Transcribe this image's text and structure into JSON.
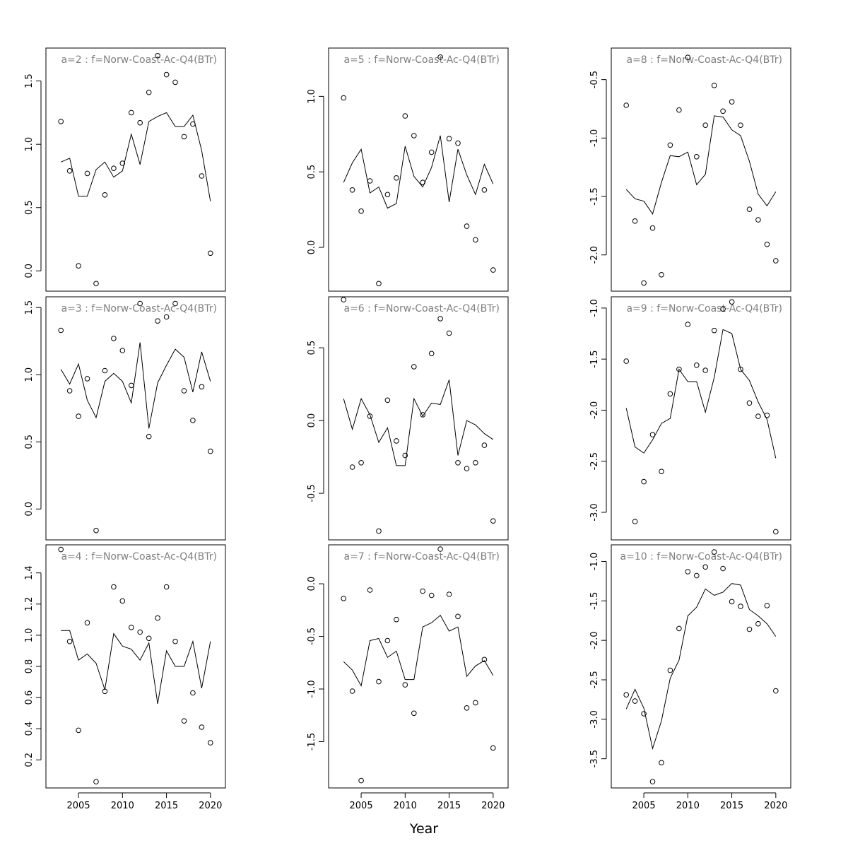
{
  "figure": {
    "xlabel": "Year"
  },
  "chart_data": [
    {
      "type": "scatter",
      "title": "a=2  :  f=Norw-Coast-Ac-Q4(BTr)",
      "xlim": [
        2001.3,
        2021.7
      ],
      "ylim": [
        -0.16,
        1.76
      ],
      "yticks": [
        0.0,
        0.5,
        1.0,
        1.5
      ],
      "yticklabels": [
        "0.0",
        "0.5",
        "1.0",
        "1.5"
      ],
      "xticks": [],
      "xticklabels": [],
      "years": [
        2003,
        2004,
        2005,
        2006,
        2007,
        2008,
        2009,
        2010,
        2011,
        2012,
        2013,
        2014,
        2015,
        2016,
        2017,
        2018,
        2019,
        2020
      ],
      "observed": [
        1.18,
        0.79,
        0.04,
        0.77,
        -0.1,
        0.6,
        0.81,
        0.85,
        1.25,
        1.17,
        1.41,
        1.7,
        1.55,
        1.49,
        1.06,
        1.16,
        0.75,
        0.14
      ],
      "fitted": [
        0.86,
        0.89,
        0.59,
        0.59,
        0.8,
        0.86,
        0.74,
        0.79,
        1.08,
        0.84,
        1.18,
        1.22,
        1.25,
        1.14,
        1.14,
        1.23,
        0.95,
        0.55
      ]
    },
    {
      "type": "scatter",
      "title": "a=5  :  f=Norw-Coast-Ac-Q4(BTr)",
      "xlim": [
        2001.3,
        2021.7
      ],
      "ylim": [
        -0.29,
        1.32
      ],
      "yticks": [
        0.0,
        0.5,
        1.0
      ],
      "yticklabels": [
        "0.0",
        "0.5",
        "1.0"
      ],
      "xticks": [],
      "xticklabels": [],
      "years": [
        2003,
        2004,
        2005,
        2006,
        2007,
        2008,
        2009,
        2010,
        2011,
        2012,
        2013,
        2014,
        2015,
        2016,
        2017,
        2018,
        2019,
        2020
      ],
      "observed": [
        0.99,
        0.38,
        0.24,
        0.44,
        -0.24,
        0.35,
        0.46,
        0.87,
        0.74,
        0.43,
        0.63,
        1.26,
        0.72,
        0.69,
        0.14,
        0.05,
        0.38,
        -0.15
      ],
      "fitted": [
        0.43,
        0.56,
        0.65,
        0.36,
        0.4,
        0.26,
        0.29,
        0.67,
        0.47,
        0.4,
        0.53,
        0.74,
        0.3,
        0.65,
        0.48,
        0.35,
        0.55,
        0.42
      ]
    },
    {
      "type": "scatter",
      "title": "a=8  :  f=Norw-Coast-Ac-Q4(BTr)",
      "xlim": [
        2001.3,
        2021.7
      ],
      "ylim": [
        -2.31,
        -0.23
      ],
      "yticks": [
        -2.0,
        -1.5,
        -1.0,
        -0.5
      ],
      "yticklabels": [
        "-2.0",
        "-1.5",
        "-1.0",
        "-0.5"
      ],
      "xticks": [],
      "xticklabels": [],
      "years": [
        2003,
        2004,
        2005,
        2006,
        2007,
        2008,
        2009,
        2010,
        2011,
        2012,
        2013,
        2014,
        2015,
        2016,
        2017,
        2018,
        2019,
        2020
      ],
      "observed": [
        -0.72,
        -1.71,
        -2.24,
        -1.77,
        -2.17,
        -1.06,
        -0.76,
        -0.31,
        -1.16,
        -0.89,
        -0.55,
        -0.77,
        -0.69,
        -0.89,
        -1.61,
        -1.7,
        -1.91,
        -2.05
      ],
      "fitted": [
        -1.44,
        -1.52,
        -1.54,
        -1.65,
        -1.38,
        -1.15,
        -1.16,
        -1.12,
        -1.4,
        -1.31,
        -0.81,
        -0.82,
        -0.93,
        -0.98,
        -1.2,
        -1.48,
        -1.58,
        -1.46
      ]
    },
    {
      "type": "scatter",
      "title": "a=3  :  f=Norw-Coast-Ac-Q4(BTr)",
      "xlim": [
        2001.3,
        2021.7
      ],
      "ylim": [
        -0.23,
        1.58
      ],
      "yticks": [
        0.0,
        0.5,
        1.0,
        1.5
      ],
      "yticklabels": [
        "0.0",
        "0.5",
        "1.0",
        "1.5"
      ],
      "xticks": [],
      "xticklabels": [],
      "years": [
        2003,
        2004,
        2005,
        2006,
        2007,
        2008,
        2009,
        2010,
        2011,
        2012,
        2013,
        2014,
        2015,
        2016,
        2017,
        2018,
        2019,
        2020
      ],
      "observed": [
        1.33,
        0.88,
        0.69,
        0.97,
        -0.16,
        1.03,
        1.27,
        1.18,
        0.92,
        1.53,
        0.54,
        1.4,
        1.43,
        1.53,
        0.88,
        0.66,
        0.91,
        0.43
      ],
      "fitted": [
        1.04,
        0.93,
        1.08,
        0.81,
        0.68,
        0.95,
        1.01,
        0.95,
        0.79,
        1.24,
        0.6,
        0.94,
        1.07,
        1.19,
        1.13,
        0.87,
        1.17,
        0.95
      ]
    },
    {
      "type": "scatter",
      "title": "a=6  :  f=Norw-Coast-Ac-Q4(BTr)",
      "xlim": [
        2001.3,
        2021.7
      ],
      "ylim": [
        -0.82,
        0.85
      ],
      "yticks": [
        -0.5,
        0.0,
        0.5
      ],
      "yticklabels": [
        "-0.5",
        "0.0",
        "0.5"
      ],
      "xticks": [],
      "xticklabels": [],
      "years": [
        2003,
        2004,
        2005,
        2006,
        2007,
        2008,
        2009,
        2010,
        2011,
        2012,
        2013,
        2014,
        2015,
        2016,
        2017,
        2018,
        2019,
        2020
      ],
      "observed": [
        0.83,
        -0.32,
        -0.29,
        0.03,
        -0.76,
        0.14,
        -0.14,
        -0.24,
        0.37,
        0.04,
        0.46,
        0.7,
        0.6,
        -0.29,
        -0.33,
        -0.29,
        -0.17,
        -0.69
      ],
      "fitted": [
        0.15,
        -0.06,
        0.15,
        0.04,
        -0.15,
        -0.05,
        -0.31,
        -0.31,
        0.15,
        0.03,
        0.12,
        0.11,
        0.28,
        -0.24,
        0.0,
        -0.03,
        -0.09,
        -0.13
      ]
    },
    {
      "type": "scatter",
      "title": "a=9  :  f=Norw-Coast-Ac-Q4(BTr)",
      "xlim": [
        2001.3,
        2021.7
      ],
      "ylim": [
        -3.27,
        -0.89
      ],
      "yticks": [
        -3.0,
        -2.5,
        -2.0,
        -1.5,
        -1.0
      ],
      "yticklabels": [
        "-3.0",
        "-2.5",
        "-2.0",
        "-1.5",
        "-1.0"
      ],
      "xticks": [],
      "xticklabels": [],
      "years": [
        2003,
        2004,
        2005,
        2006,
        2007,
        2008,
        2009,
        2010,
        2011,
        2012,
        2013,
        2014,
        2015,
        2016,
        2017,
        2018,
        2019,
        2020
      ],
      "observed": [
        -1.52,
        -3.09,
        -2.7,
        -2.24,
        -2.6,
        -1.84,
        -1.6,
        -1.16,
        -1.56,
        -1.61,
        -1.22,
        -1.01,
        -0.94,
        -1.6,
        -1.93,
        -2.06,
        -2.05,
        -3.19
      ],
      "fitted": [
        -1.98,
        -2.36,
        -2.42,
        -2.29,
        -2.13,
        -2.08,
        -1.6,
        -1.72,
        -1.72,
        -2.02,
        -1.68,
        -1.21,
        -1.25,
        -1.6,
        -1.71,
        -1.92,
        -2.09,
        -2.47
      ]
    },
    {
      "type": "scatter",
      "title": "a=4  :  f=Norw-Coast-Ac-Q4(BTr)",
      "xlim": [
        2001.3,
        2021.7
      ],
      "ylim": [
        0.02,
        1.58
      ],
      "yticks": [
        0.2,
        0.4,
        0.6,
        0.8,
        1.0,
        1.2,
        1.4
      ],
      "yticklabels": [
        "0.2",
        "0.4",
        "0.6",
        "0.8",
        "1.0",
        "1.2",
        "1.4"
      ],
      "xticks": [
        2005,
        2010,
        2015,
        2020
      ],
      "xticklabels": [
        "2005",
        "2010",
        "2015",
        "2020"
      ],
      "years": [
        2003,
        2004,
        2005,
        2006,
        2007,
        2008,
        2009,
        2010,
        2011,
        2012,
        2013,
        2014,
        2015,
        2016,
        2017,
        2018,
        2019,
        2020
      ],
      "observed": [
        1.55,
        0.96,
        0.39,
        1.08,
        0.06,
        0.64,
        1.31,
        1.22,
        1.05,
        1.02,
        0.98,
        1.11,
        1.31,
        0.96,
        0.45,
        0.63,
        0.41,
        0.31
      ],
      "fitted": [
        1.03,
        1.03,
        0.84,
        0.88,
        0.82,
        0.65,
        1.01,
        0.93,
        0.91,
        0.84,
        0.95,
        0.56,
        0.9,
        0.8,
        0.8,
        0.96,
        0.66,
        0.96
      ]
    },
    {
      "type": "scatter",
      "title": "a=7  :  f=Norw-Coast-Ac-Q4(BTr)",
      "xlim": [
        2001.3,
        2021.7
      ],
      "ylim": [
        -1.94,
        0.37
      ],
      "yticks": [
        -1.5,
        -1.0,
        -0.5,
        0.0
      ],
      "yticklabels": [
        "-1.5",
        "-1.0",
        "-0.5",
        "0.0"
      ],
      "xticks": [
        2005,
        2010,
        2015,
        2020
      ],
      "xticklabels": [
        "2005",
        "2010",
        "2015",
        "2020"
      ],
      "years": [
        2003,
        2004,
        2005,
        2006,
        2007,
        2008,
        2009,
        2010,
        2011,
        2012,
        2013,
        2014,
        2015,
        2016,
        2017,
        2018,
        2019,
        2020
      ],
      "observed": [
        -0.14,
        -1.02,
        -1.87,
        -0.06,
        -0.93,
        -0.54,
        -0.34,
        -0.96,
        -1.23,
        -0.07,
        -0.11,
        0.33,
        -0.1,
        -0.31,
        -1.18,
        -1.13,
        -0.72,
        -1.56
      ],
      "fitted": [
        -0.74,
        -0.82,
        -0.97,
        -0.54,
        -0.52,
        -0.7,
        -0.64,
        -0.91,
        -0.91,
        -0.41,
        -0.37,
        -0.3,
        -0.45,
        -0.41,
        -0.88,
        -0.78,
        -0.73,
        -0.87
      ]
    },
    {
      "type": "scatter",
      "title": "a=10  :  f=Norw-Coast-Ac-Q4(BTr)",
      "xlim": [
        2001.3,
        2021.7
      ],
      "ylim": [
        -3.87,
        -0.79
      ],
      "yticks": [
        -3.5,
        -3.0,
        -2.5,
        -2.0,
        -1.5,
        -1.0
      ],
      "yticklabels": [
        "-3.5",
        "-3.0",
        "-2.5",
        "-2.0",
        "-1.5",
        "-1.0"
      ],
      "xticks": [
        2005,
        2010,
        2015,
        2020
      ],
      "xticklabels": [
        "2005",
        "2010",
        "2015",
        "2020"
      ],
      "years": [
        2003,
        2004,
        2005,
        2006,
        2007,
        2008,
        2009,
        2010,
        2011,
        2012,
        2013,
        2014,
        2015,
        2016,
        2017,
        2018,
        2019,
        2020
      ],
      "observed": [
        -2.69,
        -2.77,
        -2.93,
        -3.79,
        -3.55,
        -2.38,
        -1.85,
        -1.13,
        -1.18,
        -1.07,
        -0.88,
        -1.09,
        -1.51,
        -1.57,
        -1.86,
        -1.79,
        -1.56,
        -2.64
      ],
      "fitted": [
        -2.87,
        -2.62,
        -2.86,
        -3.37,
        -3.02,
        -2.48,
        -2.25,
        -1.69,
        -1.58,
        -1.35,
        -1.43,
        -1.39,
        -1.28,
        -1.3,
        -1.61,
        -1.69,
        -1.79,
        -1.95
      ]
    }
  ]
}
